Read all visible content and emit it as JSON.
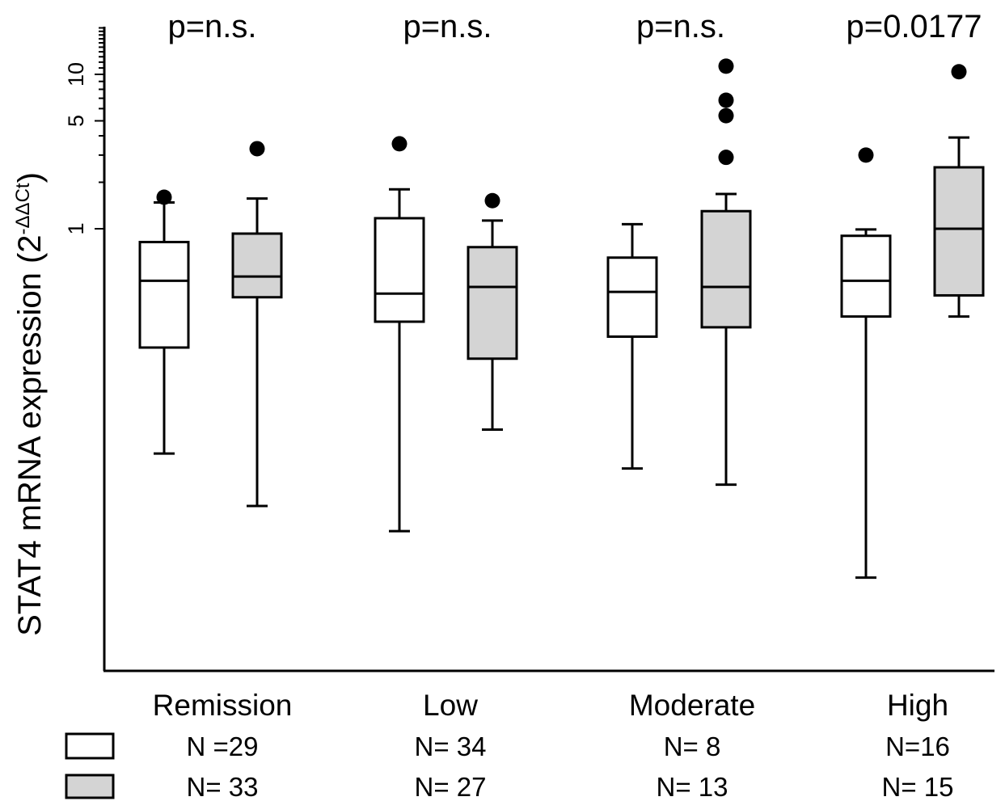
{
  "chart_data": {
    "type": "box",
    "ylabel": "STAT4 mRNA expression (2",
    "ylabel_superscript": "-ΔΔCt",
    "yscale": "log",
    "ylim": [
      0.004,
      20
    ],
    "yticks_labeled": [
      1,
      5,
      10
    ],
    "categories": [
      "Remission",
      "Low",
      "Moderate",
      "High"
    ],
    "p_values": [
      "p=n.s.",
      "p=n.s.",
      "p=n.s.",
      "p=0.0177"
    ],
    "series": [
      {
        "fill": "#ffffff",
        "n_labels": [
          "N =29",
          "N= 34",
          "N= 8",
          "N=16"
        ],
        "boxes": [
          {
            "min": 0.035,
            "q1": 0.17,
            "median": 0.46,
            "q3": 0.82,
            "max": 1.48,
            "outliers": [
              1.6
            ]
          },
          {
            "min": 0.011,
            "q1": 0.25,
            "median": 0.38,
            "q3": 1.17,
            "max": 1.8,
            "outliers": [
              3.55
            ]
          },
          {
            "min": 0.028,
            "q1": 0.2,
            "median": 0.39,
            "q3": 0.65,
            "max": 1.07,
            "outliers": []
          },
          {
            "min": 0.0055,
            "q1": 0.27,
            "median": 0.46,
            "q3": 0.9,
            "max": 0.99,
            "outliers": [
              3.0
            ]
          }
        ]
      },
      {
        "fill": "#d4d4d4",
        "n_labels": [
          "N= 33",
          "N= 27",
          "N= 13",
          "N= 15"
        ],
        "boxes": [
          {
            "min": 0.016,
            "q1": 0.36,
            "median": 0.49,
            "q3": 0.93,
            "max": 1.57,
            "outliers": [
              3.3
            ]
          },
          {
            "min": 0.05,
            "q1": 0.144,
            "median": 0.42,
            "q3": 0.76,
            "max": 1.13,
            "outliers": [
              1.52
            ]
          },
          {
            "min": 0.022,
            "q1": 0.23,
            "median": 0.42,
            "q3": 1.3,
            "max": 1.68,
            "outliers": [
              2.9,
              5.4,
              6.8,
              11.3
            ]
          },
          {
            "min": 0.27,
            "q1": 0.37,
            "median": 1.0,
            "q3": 2.5,
            "max": 3.9,
            "outliers": [
              10.4
            ]
          }
        ]
      }
    ],
    "legend": "bottom-left"
  }
}
